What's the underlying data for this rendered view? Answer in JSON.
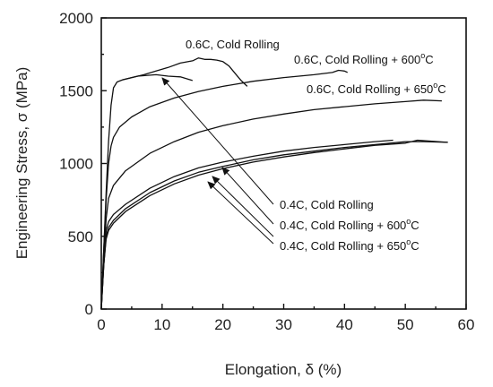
{
  "chart_data": {
    "type": "line",
    "xlabel": "Elongation, δ (%)",
    "ylabel": "Engineering Stress, σ (MPa)",
    "xlim": [
      0,
      60
    ],
    "ylim": [
      0,
      2000
    ],
    "xticks": [
      0,
      10,
      20,
      30,
      40,
      50,
      60
    ],
    "yticks": [
      0,
      500,
      1000,
      1500,
      2000
    ],
    "grid": false,
    "series": [
      {
        "name": "0.6C, Cold Rolling",
        "label_main": "0.6C, Cold Rolling",
        "label_sup": "",
        "label_tail": "",
        "points": [
          [
            0,
            0
          ],
          [
            0.4,
            400
          ],
          [
            0.8,
            800
          ],
          [
            1.2,
            1150
          ],
          [
            1.6,
            1400
          ],
          [
            2,
            1520
          ],
          [
            2.6,
            1560
          ],
          [
            3.5,
            1575
          ],
          [
            5,
            1590
          ],
          [
            7,
            1610
          ],
          [
            9,
            1635
          ],
          [
            11,
            1660
          ],
          [
            13,
            1690
          ],
          [
            15,
            1705
          ],
          [
            16,
            1725
          ],
          [
            17,
            1715
          ],
          [
            18,
            1715
          ],
          [
            19,
            1710
          ],
          [
            20,
            1700
          ],
          [
            21,
            1670
          ],
          [
            22,
            1620
          ],
          [
            23,
            1570
          ],
          [
            24,
            1530
          ]
        ]
      },
      {
        "name": "0.6C, Cold Rolling + 600°C",
        "label_main": "0.6C, Cold Rolling + 600",
        "label_sup": "o",
        "label_tail": "C",
        "points": [
          [
            0,
            0
          ],
          [
            0.4,
            400
          ],
          [
            0.8,
            750
          ],
          [
            1.2,
            1000
          ],
          [
            1.6,
            1120
          ],
          [
            2,
            1180
          ],
          [
            3,
            1250
          ],
          [
            5,
            1320
          ],
          [
            8,
            1390
          ],
          [
            12,
            1450
          ],
          [
            16,
            1495
          ],
          [
            20,
            1530
          ],
          [
            25,
            1565
          ],
          [
            30,
            1590
          ],
          [
            35,
            1610
          ],
          [
            38,
            1625
          ],
          [
            39,
            1640
          ],
          [
            40,
            1635
          ],
          [
            40.5,
            1625
          ]
        ]
      },
      {
        "name": "0.6C, Cold Rolling + 650°C",
        "label_main": "0.6C, Cold Rolling + 650",
        "label_sup": "o",
        "label_tail": "C",
        "points": [
          [
            0,
            0
          ],
          [
            0.4,
            350
          ],
          [
            0.8,
            620
          ],
          [
            1.2,
            760
          ],
          [
            2,
            850
          ],
          [
            4,
            950
          ],
          [
            8,
            1070
          ],
          [
            12,
            1150
          ],
          [
            16,
            1215
          ],
          [
            20,
            1260
          ],
          [
            25,
            1305
          ],
          [
            30,
            1340
          ],
          [
            35,
            1370
          ],
          [
            40,
            1390
          ],
          [
            45,
            1410
          ],
          [
            50,
            1425
          ],
          [
            53,
            1435
          ],
          [
            56,
            1430
          ]
        ]
      },
      {
        "name": "0.4C, Cold Rolling",
        "label_main": "0.4C, Cold Rolling",
        "label_sup": "",
        "label_tail": "",
        "points": [
          [
            0,
            0
          ],
          [
            0.4,
            300
          ],
          [
            0.8,
            540
          ],
          [
            1.2,
            600
          ],
          [
            2,
            650
          ],
          [
            4,
            720
          ],
          [
            8,
            830
          ],
          [
            12,
            910
          ],
          [
            16,
            970
          ],
          [
            20,
            1010
          ],
          [
            25,
            1050
          ],
          [
            30,
            1085
          ],
          [
            35,
            1110
          ],
          [
            40,
            1130
          ],
          [
            45,
            1150
          ],
          [
            48,
            1160
          ]
        ]
      },
      {
        "name": "0.4C, Cold Rolling + 600°C",
        "label_main": "0.4C, Cold Rolling + 600",
        "label_sup": "o",
        "label_tail": "C",
        "points": [
          [
            0,
            0
          ],
          [
            0.4,
            300
          ],
          [
            0.8,
            500
          ],
          [
            1.2,
            560
          ],
          [
            2,
            610
          ],
          [
            4,
            690
          ],
          [
            8,
            800
          ],
          [
            12,
            880
          ],
          [
            16,
            940
          ],
          [
            20,
            980
          ],
          [
            25,
            1025
          ],
          [
            30,
            1060
          ],
          [
            35,
            1085
          ],
          [
            40,
            1110
          ],
          [
            45,
            1130
          ],
          [
            50,
            1150
          ],
          [
            53,
            1150
          ],
          [
            57,
            1145
          ]
        ]
      },
      {
        "name": "0.4C, Cold Rolling + 650°C",
        "label_main": "0.4C, Cold Rolling + 650",
        "label_sup": "o",
        "label_tail": "C",
        "points": [
          [
            0,
            0
          ],
          [
            0.4,
            300
          ],
          [
            0.8,
            480
          ],
          [
            1.2,
            540
          ],
          [
            2,
            590
          ],
          [
            4,
            670
          ],
          [
            8,
            780
          ],
          [
            12,
            860
          ],
          [
            16,
            920
          ],
          [
            20,
            965
          ],
          [
            25,
            1010
          ],
          [
            30,
            1045
          ],
          [
            35,
            1075
          ],
          [
            40,
            1100
          ],
          [
            45,
            1125
          ],
          [
            50,
            1140
          ],
          [
            52,
            1160
          ],
          [
            57,
            1145
          ]
        ]
      }
    ],
    "extra_segments": [
      {
        "points": [
          [
            3.5,
            1575
          ],
          [
            6,
            1600
          ],
          [
            9,
            1610
          ],
          [
            11,
            1600
          ],
          [
            13,
            1595
          ],
          [
            15,
            1570
          ]
        ]
      }
    ]
  }
}
